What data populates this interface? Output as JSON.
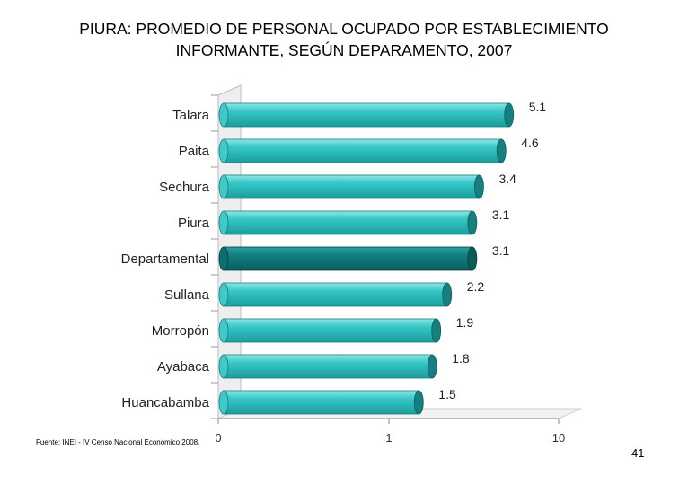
{
  "title_lines": [
    "PIURA: PROMEDIO DE PERSONAL OCUPADO POR ESTABLECIMIENTO",
    "INFORMANTE, SEGÚN DEPARAMENTO, 2007"
  ],
  "source": "Fuente: INEI - IV Censo Nacional Económico 2008.",
  "page_number": "41",
  "chart_data": {
    "type": "bar",
    "orientation": "horizontal",
    "title": "PIURA: PROMEDIO DE PERSONAL OCUPADO POR ESTABLECIMIENTO INFORMANTE, SEGÚN DEPARAMENTO, 2007",
    "categories": [
      "Talara",
      "Paita",
      "Sechura",
      "Piura",
      "Departamental",
      "Sullana",
      "Morropón",
      "Ayabaca",
      "Huancabamba"
    ],
    "values": [
      5.1,
      4.6,
      3.4,
      3.1,
      3.1,
      2.2,
      1.9,
      1.8,
      1.5
    ],
    "value_labels": [
      "5.1",
      "4.6",
      "3.4",
      "3.1",
      "3.1",
      "2.2",
      "1.9",
      "1.8",
      "1.5"
    ],
    "highlight": "Departamental",
    "xscale": "log",
    "xlim": [
      0,
      10
    ],
    "xticks": [
      "0",
      "1",
      "10"
    ],
    "xlabel": "",
    "ylabel": "",
    "colors": {
      "bar": "#33c4c4",
      "bar_end": "#167f7f",
      "highlight": "#0f7a7a",
      "highlight_end": "#0a5a5a"
    }
  }
}
